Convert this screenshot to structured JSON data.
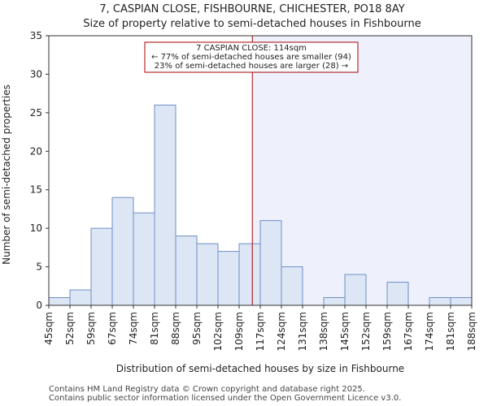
{
  "chart_data": {
    "type": "bar",
    "title": "7, CASPIAN CLOSE, FISHBOURNE, CHICHESTER, PO18 8AY",
    "subtitle": "Size of property relative to semi-detached houses in Fishbourne",
    "xlabel": "Distribution of semi-detached houses by size in Fishbourne",
    "ylabel": "Number of semi-detached properties",
    "bin_edges": [
      45,
      52,
      59,
      67,
      74,
      81,
      88,
      95,
      102,
      109,
      117,
      124,
      131,
      138,
      145,
      152,
      159,
      167,
      174,
      181,
      188
    ],
    "tick_labels": [
      "45sqm",
      "52sqm",
      "59sqm",
      "67sqm",
      "74sqm",
      "81sqm",
      "88sqm",
      "95sqm",
      "102sqm",
      "109sqm",
      "117sqm",
      "124sqm",
      "131sqm",
      "138sqm",
      "145sqm",
      "152sqm",
      "159sqm",
      "167sqm",
      "174sqm",
      "181sqm",
      "188sqm"
    ],
    "values": [
      1,
      2,
      10,
      14,
      12,
      26,
      9,
      8,
      7,
      8,
      11,
      5,
      0,
      1,
      4,
      0,
      3,
      0,
      1,
      1
    ],
    "ylim": [
      0,
      35
    ],
    "yticks": [
      0,
      5,
      10,
      15,
      20,
      25,
      30,
      35
    ],
    "marker": {
      "value": 114,
      "label_line1": "7 CASPIAN CLOSE: 114sqm",
      "label_line2": "← 77% of semi-detached houses are smaller (94)",
      "label_line3": "23% of semi-detached houses are larger (28) →"
    },
    "colors": {
      "bar_fill": "#dce6f5",
      "bar_edge": "#6f8fc4",
      "marker": "#aa0000",
      "shade": "#eef1fb"
    }
  },
  "footer": {
    "line1": "Contains HM Land Registry data © Crown copyright and database right 2025.",
    "line2": "Contains public sector information licensed under the Open Government Licence v3.0."
  }
}
